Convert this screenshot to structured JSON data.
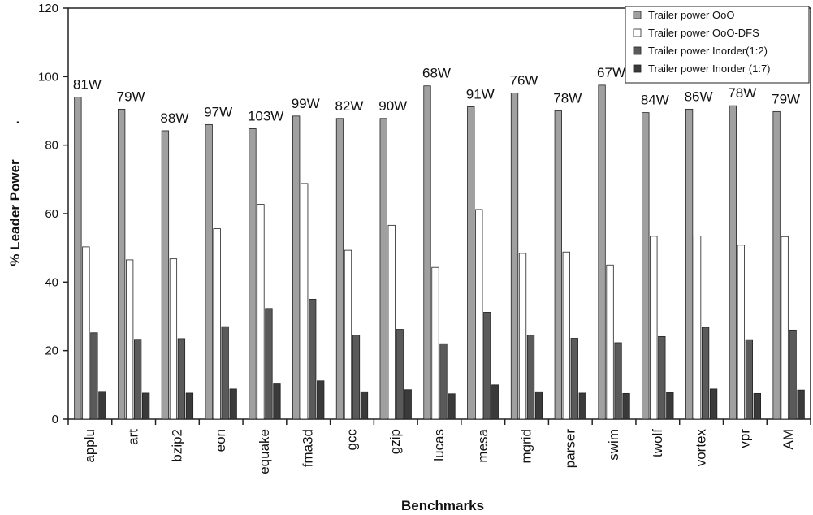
{
  "chart_data": {
    "type": "bar",
    "xlabel": "Benchmarks",
    "ylabel": "% Leader Power",
    "ylim": [
      0,
      120
    ],
    "yticks": [
      0,
      20,
      40,
      60,
      80,
      100,
      120
    ],
    "grid": false,
    "legend_position": "top-right",
    "categories": [
      "applu",
      "art",
      "bzip2",
      "eon",
      "equake",
      "fma3d",
      "gcc",
      "gzip",
      "lucas",
      "mesa",
      "mgrid",
      "parser",
      "swim",
      "twolf",
      "vortex",
      "vpr",
      "AM"
    ],
    "series": [
      {
        "name": "Trailer power OoO",
        "color": "#a0a0a0",
        "values": [
          94,
          90.5,
          84.2,
          86,
          84.8,
          88.5,
          87.8,
          87.8,
          97.3,
          91.2,
          95.2,
          90,
          97.5,
          89.5,
          90.5,
          91.5,
          89.8
        ]
      },
      {
        "name": "Trailer power OoO-DFS",
        "color": "#ffffff",
        "values": [
          50.3,
          46.5,
          46.8,
          55.6,
          62.7,
          68.8,
          49.3,
          56.6,
          44.3,
          61.2,
          48.4,
          48.8,
          45,
          53.4,
          53.5,
          50.8,
          53.3
        ]
      },
      {
        "name": "Trailer power Inorder(1:2)",
        "color": "#5a5a5a",
        "values": [
          25.2,
          23.3,
          23.5,
          27,
          32.3,
          35,
          24.5,
          26.2,
          22,
          31.2,
          24.5,
          23.6,
          22.3,
          24.1,
          26.8,
          23.2,
          26
        ]
      },
      {
        "name": "Trailer power Inorder (1:7)",
        "color": "#3a3a3a",
        "values": [
          8.1,
          7.6,
          7.6,
          8.8,
          10.3,
          11.2,
          8,
          8.6,
          7.4,
          10,
          8,
          7.6,
          7.5,
          7.8,
          8.8,
          7.5,
          8.5
        ]
      }
    ],
    "annotations": [
      "81W",
      "79W",
      "88W",
      "97W",
      "103W",
      "99W",
      "82W",
      "90W",
      "68W",
      "91W",
      "76W",
      "78W",
      "67W",
      "84W",
      "86W",
      "78W",
      "79W"
    ]
  },
  "side_mark": "."
}
